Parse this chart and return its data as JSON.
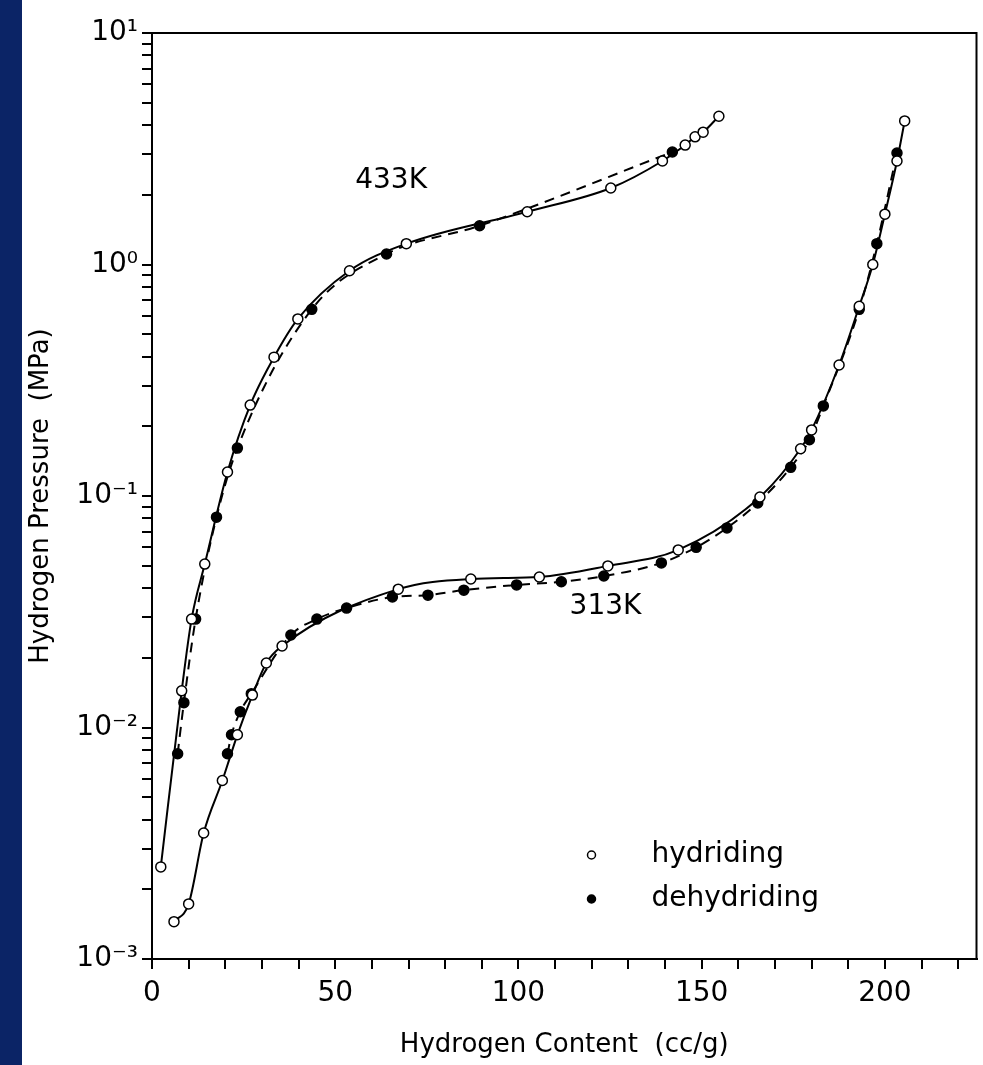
{
  "chart_data": {
    "type": "line",
    "xlabel": "Hydrogen Content  (cc/g)",
    "ylabel": "Hydrogen Pressure  (MPa)",
    "log": "y",
    "xlim": [
      0,
      225
    ],
    "ylim": [
      0.001,
      10
    ],
    "xticks": [
      0,
      {
        "value": 10,
        "label": null
      },
      {
        "value": 20,
        "label": null
      },
      {
        "value": 30,
        "label": null
      },
      {
        "value": 40,
        "label": null
      },
      50,
      {
        "value": 60,
        "label": null
      },
      {
        "value": 70,
        "label": null
      },
      {
        "value": 80,
        "label": null
      },
      {
        "value": 90,
        "label": null
      },
      100,
      {
        "value": 110,
        "label": null
      },
      {
        "value": 120,
        "label": null
      },
      {
        "value": 130,
        "label": null
      },
      {
        "value": 140,
        "label": null
      },
      150,
      {
        "value": 160,
        "label": null
      },
      {
        "value": 170,
        "label": null
      },
      {
        "value": 180,
        "label": null
      },
      {
        "value": 190,
        "label": null
      },
      200,
      {
        "value": 210,
        "label": null
      },
      {
        "value": 220,
        "label": null
      }
    ],
    "yticks": [
      {
        "value": 0.001,
        "label": "10⁻³"
      },
      {
        "value": 0.002,
        "label": null
      },
      {
        "value": 0.003,
        "label": null
      },
      {
        "value": 0.004,
        "label": null
      },
      {
        "value": 0.005,
        "label": null
      },
      {
        "value": 0.006,
        "label": null
      },
      {
        "value": 0.007,
        "label": null
      },
      {
        "value": 0.008,
        "label": null
      },
      {
        "value": 0.009,
        "label": null
      },
      {
        "value": 0.01,
        "label": "10⁻²"
      },
      {
        "value": 0.02,
        "label": null
      },
      {
        "value": 0.03,
        "label": null
      },
      {
        "value": 0.04,
        "label": null
      },
      {
        "value": 0.05,
        "label": null
      },
      {
        "value": 0.06,
        "label": null
      },
      {
        "value": 0.07,
        "label": null
      },
      {
        "value": 0.08,
        "label": null
      },
      {
        "value": 0.09,
        "label": null
      },
      {
        "value": 0.1,
        "label": "10⁻¹"
      },
      {
        "value": 0.2,
        "label": null
      },
      {
        "value": 0.3,
        "label": null
      },
      {
        "value": 0.4,
        "label": null
      },
      {
        "value": 0.5,
        "label": null
      },
      {
        "value": 0.6,
        "label": null
      },
      {
        "value": 0.7,
        "label": null
      },
      {
        "value": 0.8,
        "label": null
      },
      {
        "value": 0.9,
        "label": null
      },
      {
        "value": 1,
        "label": "10⁰"
      },
      {
        "value": 2,
        "label": null
      },
      {
        "value": 3,
        "label": null
      },
      {
        "value": 4,
        "label": null
      },
      {
        "value": 5,
        "label": null
      },
      {
        "value": 6,
        "label": null
      },
      {
        "value": 7,
        "label": null
      },
      {
        "value": 8,
        "label": null
      },
      {
        "value": 9,
        "label": null
      },
      {
        "value": 10,
        "label": "10¹"
      }
    ],
    "grid": false,
    "legend": "bottom right",
    "marker": "circle",
    "annotations": [
      "433K",
      "313K"
    ],
    "series": [
      {
        "name": "hydriding",
        "color": "#ffffff",
        "line_style": "solid",
        "x": [
          2.4,
          8.1,
          10.8,
          14.4,
          20.6,
          26.8,
          33.3,
          39.8,
          53.9,
          69.4,
          102.4,
          125.2,
          139.3,
          145.5,
          148.2,
          150.4,
          154.7
        ],
        "values": [
          0.0025,
          0.0144,
          0.0294,
          0.0508,
          0.127,
          0.247,
          0.398,
          0.582,
          0.94,
          1.23,
          1.69,
          2.14,
          2.8,
          3.28,
          3.56,
          3.73,
          4.37
        ]
      },
      {
        "name": "dehydriding",
        "color": "#000000",
        "line_style": "dashed",
        "x": [
          7.0,
          8.7,
          11.9,
          17.6,
          23.3,
          43.6,
          64.0,
          89.4,
          142.0
        ],
        "values": [
          0.0077,
          0.0128,
          0.0294,
          0.081,
          0.161,
          0.64,
          1.11,
          1.47,
          3.06
        ]
      },
      {
        "color": "#ffffff",
        "line_style": "solid",
        "x": [
          6.0,
          10.0,
          14.1,
          19.2,
          23.3,
          27.4,
          31.2,
          35.5,
          67.2,
          87.0,
          105.7,
          124.4,
          143.6,
          165.9,
          177.0,
          180.0,
          187.5,
          193.0,
          196.7,
          200.0,
          203.3,
          205.4
        ],
        "values": [
          0.00145,
          0.00173,
          0.0035,
          0.0059,
          0.0093,
          0.0138,
          0.019,
          0.0225,
          0.0396,
          0.0438,
          0.0447,
          0.0499,
          0.0585,
          0.099,
          0.16,
          0.193,
          0.368,
          0.66,
          1.0,
          1.65,
          2.8,
          4.17
        ]
      },
      {
        "color": "#000000",
        "line_style": "dashed",
        "x": [
          20.6,
          21.7,
          24.1,
          27.1,
          37.9,
          45.0,
          53.1,
          65.6,
          75.3,
          85.1,
          99.5,
          111.7,
          123.3,
          139.0,
          148.5,
          156.9,
          165.3,
          174.3,
          179.4,
          183.2,
          193.0,
          197.8,
          203.3
        ],
        "values": [
          0.0077,
          0.0093,
          0.0117,
          0.014,
          0.0251,
          0.0294,
          0.0328,
          0.0366,
          0.0373,
          0.0392,
          0.0413,
          0.0426,
          0.0451,
          0.0514,
          0.06,
          0.0728,
          0.0933,
          0.133,
          0.175,
          0.245,
          0.64,
          1.23,
          3.03
        ]
      }
    ]
  }
}
